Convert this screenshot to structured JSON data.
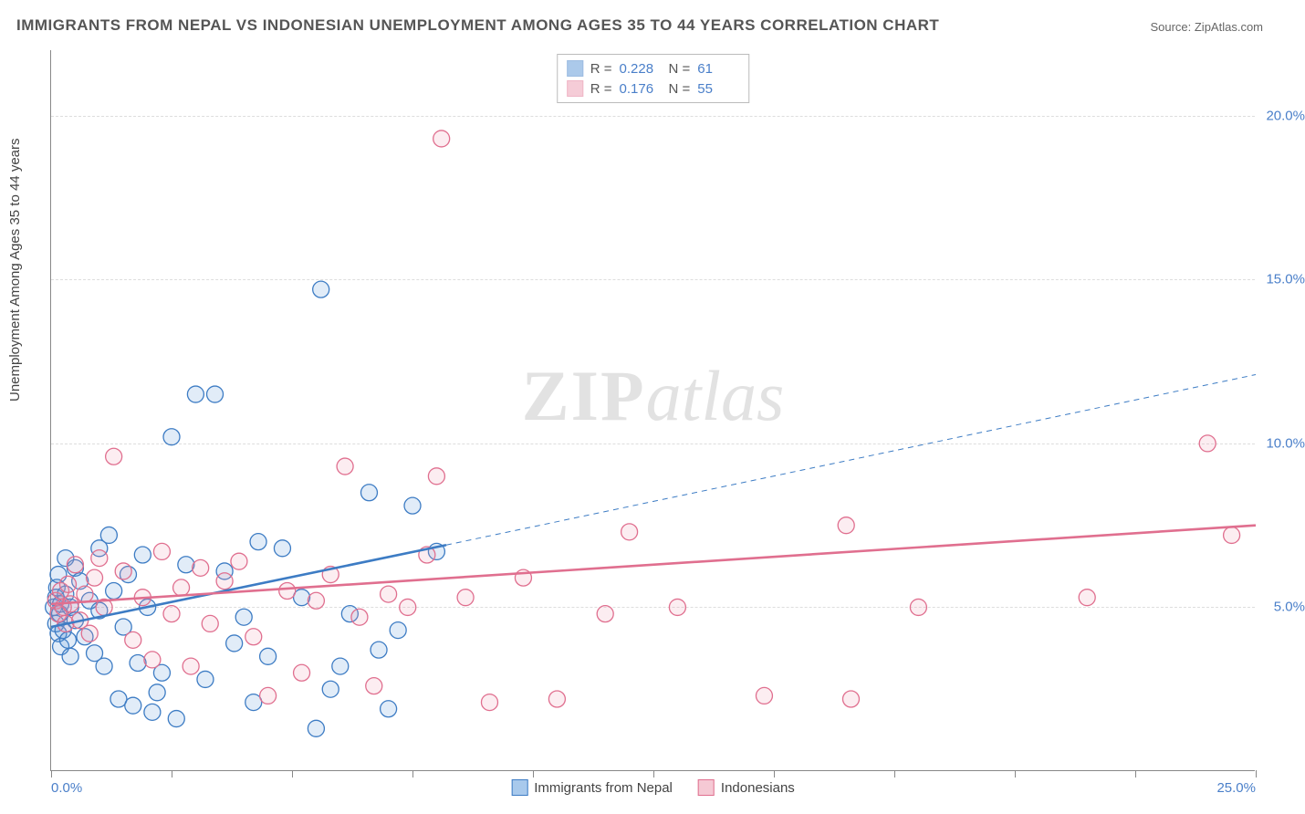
{
  "title": "IMMIGRANTS FROM NEPAL VS INDONESIAN UNEMPLOYMENT AMONG AGES 35 TO 44 YEARS CORRELATION CHART",
  "source": "Source: ZipAtlas.com",
  "ylabel": "Unemployment Among Ages 35 to 44 years",
  "watermark_a": "ZIP",
  "watermark_b": "atlas",
  "chart": {
    "type": "scatter-correlation",
    "background_color": "#ffffff",
    "grid_color": "#dddddd",
    "axis_color": "#888888",
    "text_color": "#555555",
    "value_color": "#4a7fc9",
    "xlim": [
      0,
      25
    ],
    "ylim": [
      0,
      22
    ],
    "xtick_positions": [
      0,
      2.5,
      5,
      7.5,
      10,
      12.5,
      15,
      17.5,
      20,
      22.5,
      25
    ],
    "xtick_labels": {
      "0": "0.0%",
      "25": "25.0%"
    },
    "ytick_positions_labeled": [
      5,
      10,
      15,
      20
    ],
    "ytick_labels": {
      "5": "5.0%",
      "10": "10.0%",
      "15": "15.0%",
      "20": "20.0%"
    },
    "marker_radius": 9,
    "marker_stroke_width": 1.3,
    "marker_fill_opacity": 0.18,
    "line_width_solid": 2.6,
    "line_width_dash": 1,
    "dash_pattern": "6 5",
    "series": [
      {
        "name": "Immigrants from Nepal",
        "color": "#5a94d6",
        "stroke": "#3d7cc4",
        "r": 0.228,
        "n": 61,
        "fit_solid": {
          "x1": 0,
          "y1": 4.4,
          "x2": 8.2,
          "y2": 6.9
        },
        "fit_dash": {
          "x1": 8.2,
          "y1": 6.9,
          "x2": 25,
          "y2": 12.1
        },
        "points": [
          [
            0.05,
            5.0
          ],
          [
            0.1,
            4.5
          ],
          [
            0.1,
            5.3
          ],
          [
            0.12,
            5.6
          ],
          [
            0.15,
            4.2
          ],
          [
            0.15,
            6.0
          ],
          [
            0.18,
            4.8
          ],
          [
            0.2,
            5.1
          ],
          [
            0.2,
            3.8
          ],
          [
            0.25,
            4.3
          ],
          [
            0.3,
            5.4
          ],
          [
            0.3,
            6.5
          ],
          [
            0.35,
            4.0
          ],
          [
            0.4,
            5.0
          ],
          [
            0.4,
            3.5
          ],
          [
            0.5,
            6.2
          ],
          [
            0.5,
            4.6
          ],
          [
            0.6,
            5.8
          ],
          [
            0.7,
            4.1
          ],
          [
            0.8,
            5.2
          ],
          [
            0.9,
            3.6
          ],
          [
            1.0,
            6.8
          ],
          [
            1.0,
            4.9
          ],
          [
            1.1,
            3.2
          ],
          [
            1.2,
            7.2
          ],
          [
            1.3,
            5.5
          ],
          [
            1.4,
            2.2
          ],
          [
            1.5,
            4.4
          ],
          [
            1.6,
            6.0
          ],
          [
            1.7,
            2.0
          ],
          [
            1.8,
            3.3
          ],
          [
            1.9,
            6.6
          ],
          [
            2.0,
            5.0
          ],
          [
            2.1,
            1.8
          ],
          [
            2.2,
            2.4
          ],
          [
            2.3,
            3.0
          ],
          [
            2.5,
            10.2
          ],
          [
            2.6,
            1.6
          ],
          [
            2.8,
            6.3
          ],
          [
            3.0,
            11.5
          ],
          [
            3.2,
            2.8
          ],
          [
            3.4,
            11.5
          ],
          [
            3.6,
            6.1
          ],
          [
            3.8,
            3.9
          ],
          [
            4.0,
            4.7
          ],
          [
            4.2,
            2.1
          ],
          [
            4.3,
            7.0
          ],
          [
            4.5,
            3.5
          ],
          [
            4.8,
            6.8
          ],
          [
            5.2,
            5.3
          ],
          [
            5.5,
            1.3
          ],
          [
            5.6,
            14.7
          ],
          [
            5.8,
            2.5
          ],
          [
            6.0,
            3.2
          ],
          [
            6.2,
            4.8
          ],
          [
            6.6,
            8.5
          ],
          [
            6.8,
            3.7
          ],
          [
            7.0,
            1.9
          ],
          [
            7.2,
            4.3
          ],
          [
            7.5,
            8.1
          ],
          [
            8.0,
            6.7
          ]
        ]
      },
      {
        "name": "Indonesians",
        "color": "#ec9ab1",
        "stroke": "#e06f8f",
        "r": 0.176,
        "n": 55,
        "fit_solid": {
          "x1": 0,
          "y1": 5.1,
          "x2": 25,
          "y2": 7.5
        },
        "fit_dash": null,
        "points": [
          [
            0.1,
            5.2
          ],
          [
            0.15,
            4.8
          ],
          [
            0.2,
            5.5
          ],
          [
            0.25,
            5.0
          ],
          [
            0.3,
            4.5
          ],
          [
            0.35,
            5.7
          ],
          [
            0.4,
            5.1
          ],
          [
            0.5,
            6.3
          ],
          [
            0.6,
            4.6
          ],
          [
            0.7,
            5.4
          ],
          [
            0.8,
            4.2
          ],
          [
            0.9,
            5.9
          ],
          [
            1.0,
            6.5
          ],
          [
            1.1,
            5.0
          ],
          [
            1.3,
            9.6
          ],
          [
            1.5,
            6.1
          ],
          [
            1.7,
            4.0
          ],
          [
            1.9,
            5.3
          ],
          [
            2.1,
            3.4
          ],
          [
            2.3,
            6.7
          ],
          [
            2.5,
            4.8
          ],
          [
            2.7,
            5.6
          ],
          [
            2.9,
            3.2
          ],
          [
            3.1,
            6.2
          ],
          [
            3.3,
            4.5
          ],
          [
            3.6,
            5.8
          ],
          [
            3.9,
            6.4
          ],
          [
            4.2,
            4.1
          ],
          [
            4.5,
            2.3
          ],
          [
            4.9,
            5.5
          ],
          [
            5.2,
            3.0
          ],
          [
            5.5,
            5.2
          ],
          [
            5.8,
            6.0
          ],
          [
            6.1,
            9.3
          ],
          [
            6.4,
            4.7
          ],
          [
            6.7,
            2.6
          ],
          [
            7.0,
            5.4
          ],
          [
            7.4,
            5.0
          ],
          [
            7.8,
            6.6
          ],
          [
            8.0,
            9.0
          ],
          [
            8.1,
            19.3
          ],
          [
            8.6,
            5.3
          ],
          [
            9.1,
            2.1
          ],
          [
            9.8,
            5.9
          ],
          [
            10.5,
            2.2
          ],
          [
            11.5,
            4.8
          ],
          [
            12.0,
            7.3
          ],
          [
            13.0,
            5.0
          ],
          [
            14.8,
            2.3
          ],
          [
            16.5,
            7.5
          ],
          [
            16.6,
            2.2
          ],
          [
            18.0,
            5.0
          ],
          [
            21.5,
            5.3
          ],
          [
            24.0,
            10.0
          ],
          [
            24.5,
            7.2
          ]
        ]
      }
    ],
    "legend_bottom": [
      {
        "label": "Immigrants from Nepal",
        "swatch": "#a8c9ec",
        "border": "#3d7cc4"
      },
      {
        "label": "Indonesians",
        "swatch": "#f5c9d4",
        "border": "#e06f8f"
      }
    ]
  }
}
